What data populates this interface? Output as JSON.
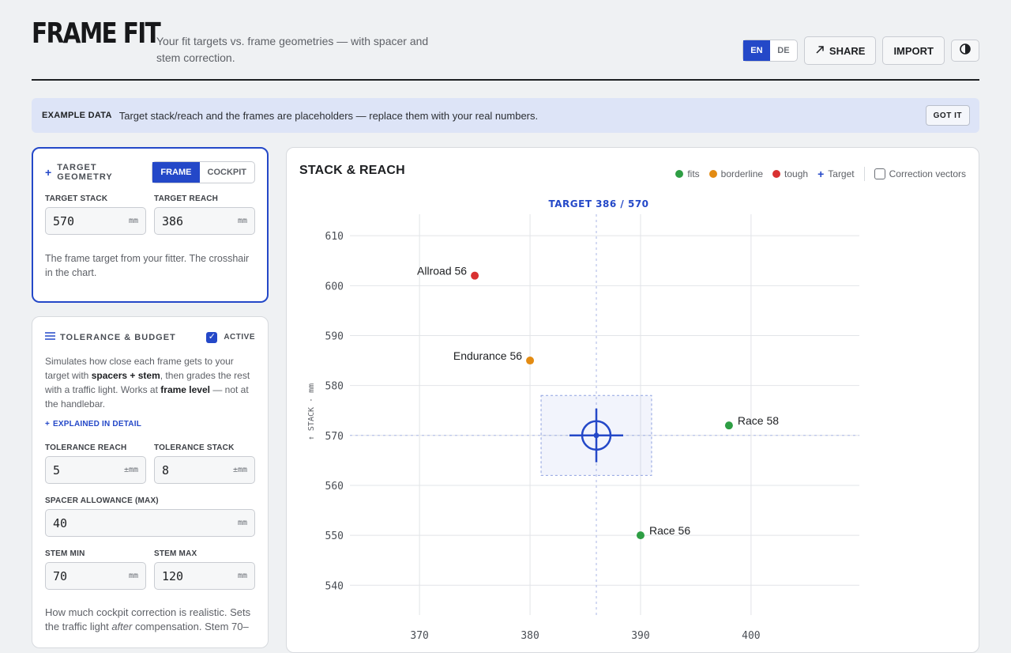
{
  "header": {
    "title": "FRAME FIT",
    "subtitle": "Your fit targets vs. frame geometries — with spacer and stem correction.",
    "lang_en": "EN",
    "lang_de": "DE",
    "share_label": "SHARE",
    "import_label": "IMPORT"
  },
  "banner": {
    "tag": "EXAMPLE DATA",
    "message": "Target stack/reach and the frames are placeholders — replace them with your real numbers.",
    "button": "GOT IT"
  },
  "target": {
    "title": "TARGET GEOMETRY",
    "mode_frame": "FRAME",
    "mode_cockpit": "COCKPIT",
    "stack_label": "TARGET STACK",
    "stack_value": "570",
    "stack_unit": "mm",
    "reach_label": "TARGET REACH",
    "reach_value": "386",
    "reach_unit": "mm",
    "description": "The frame target from your fitter. The crosshair in the chart."
  },
  "tolerance": {
    "title": "TOLERANCE & BUDGET",
    "active_label": "ACTIVE",
    "desc_1": "Simulates how close each frame gets to your target with ",
    "desc_bold_1": "spacers + stem",
    "desc_2": ", then grades the rest with a traffic light. Works at ",
    "desc_bold_2": "frame level",
    "desc_3": " — not at the handlebar.",
    "explain_link": "EXPLAINED IN DETAIL",
    "tol_reach_label": "TOLERANCE REACH",
    "tol_reach_value": "5",
    "tol_reach_unit": "±mm",
    "tol_stack_label": "TOLERANCE STACK",
    "tol_stack_value": "8",
    "tol_stack_unit": "±mm",
    "spacer_label": "SPACER ALLOWANCE (MAX)",
    "spacer_value": "40",
    "spacer_unit": "mm",
    "stem_min_label": "STEM MIN",
    "stem_min_value": "70",
    "stem_min_unit": "mm",
    "stem_max_label": "STEM MAX",
    "stem_max_value": "120",
    "stem_max_unit": "mm",
    "footer_1": "How much cockpit correction is realistic. Sets the traffic light ",
    "footer_em": "after",
    "footer_2": " compensation. Stem 70–"
  },
  "chart_panel": {
    "title": "STACK & REACH",
    "legend_fits": "fits",
    "legend_borderline": "borderline",
    "legend_tough": "tough",
    "legend_target": "Target",
    "correction_label": "Correction vectors",
    "colors": {
      "fits": "#2e9e44",
      "borderline": "#e38b12",
      "tough": "#d93131",
      "target": "#2448c8"
    }
  },
  "chart_data": {
    "type": "scatter",
    "title": "TARGET 386 / 570",
    "xlabel": "",
    "ylabel": "↑ STACK · mm",
    "xlim": [
      363.7,
      409.8
    ],
    "ylim": [
      536.4,
      614.3
    ],
    "xticks": [
      370,
      380,
      390,
      400
    ],
    "yticks": [
      540,
      550,
      560,
      570,
      580,
      590,
      600,
      610
    ],
    "grid": true,
    "target": {
      "x": 386,
      "y": 570,
      "tol_x": 5,
      "tol_y": 8
    },
    "points": [
      {
        "name": "Allroad 56",
        "x": 375,
        "y": 602,
        "status": "tough"
      },
      {
        "name": "Endurance 56",
        "x": 380,
        "y": 585,
        "status": "borderline"
      },
      {
        "name": "Race 58",
        "x": 398,
        "y": 572,
        "status": "fits"
      },
      {
        "name": "Race 56",
        "x": 390,
        "y": 550,
        "status": "fits"
      }
    ]
  }
}
